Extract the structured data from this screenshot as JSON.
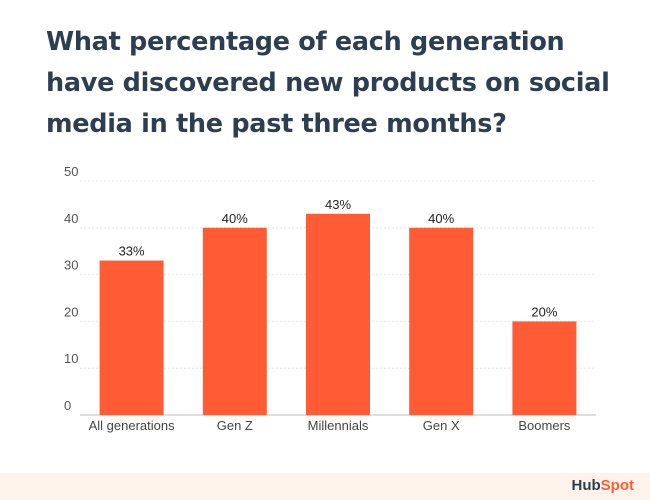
{
  "chart_title": "What percentage of each generation have discovered new products on social media in the past three months?",
  "brand": {
    "name_part1": "Hub",
    "name_part2": "Spot"
  },
  "colors": {
    "bar": "#ff5c35",
    "title": "#2d3e50",
    "grid": "#e6e6e6",
    "text": "#444444"
  },
  "chart_data": {
    "type": "bar",
    "title": "What percentage of each generation have discovered new products on social media in the past three months?",
    "categories": [
      "All generations",
      "Gen Z",
      "Millennials",
      "Gen X",
      "Boomers"
    ],
    "values": [
      33,
      40,
      43,
      40,
      20
    ],
    "data_labels": [
      "33%",
      "40%",
      "43%",
      "40%",
      "20%"
    ],
    "ylim": [
      0,
      50
    ],
    "yticks": [
      0,
      10,
      20,
      30,
      40,
      50
    ],
    "grid": true,
    "xlabel": "",
    "ylabel": ""
  }
}
